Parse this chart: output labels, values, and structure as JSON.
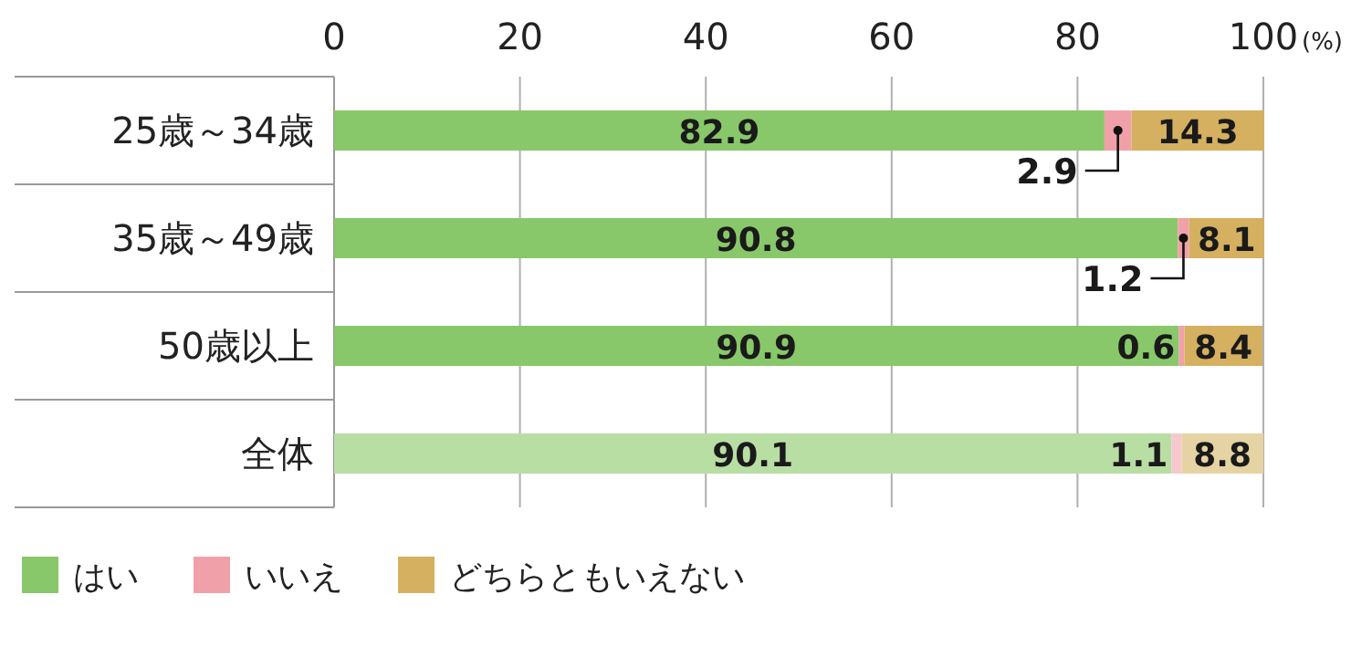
{
  "chart_data": {
    "type": "bar",
    "orientation": "horizontal",
    "stacked": true,
    "xlabel": "(%)",
    "categories": [
      "25歳～34歳",
      "35歳～49歳",
      "50歳以上",
      "全体"
    ],
    "series": [
      {
        "name": "はい",
        "color": "#88c86a",
        "colors": [
          "#88c86a",
          "#88c86a",
          "#88c86a",
          "#b8dea4"
        ],
        "values": [
          82.9,
          90.8,
          90.9,
          90.1
        ],
        "value_labels": [
          "82.9",
          "90.8",
          "90.9",
          "90.1"
        ]
      },
      {
        "name": "いいえ",
        "color": "#f0a0a8",
        "colors": [
          "#f0a0a8",
          "#f0a0a8",
          "#f0a0a8",
          "#f6c8cd"
        ],
        "values": [
          2.9,
          1.2,
          0.6,
          1.1
        ],
        "value_labels": [
          null,
          null,
          "0.6",
          "1.1"
        ]
      },
      {
        "name": "どちらともいえない",
        "color": "#d4b060",
        "colors": [
          "#d4b060",
          "#d4b060",
          "#d4b060",
          "#e6d3a3"
        ],
        "values": [
          14.3,
          8.1,
          8.4,
          8.8
        ],
        "value_labels": [
          "14.3",
          "8.1",
          "8.4",
          "8.8"
        ]
      }
    ],
    "annotations": [
      {
        "text": "2.9",
        "x": 84.35,
        "y": "25歳～34歳"
      },
      {
        "text": "1.2",
        "x": 91.4,
        "y": "35歳～49歳"
      }
    ],
    "xlim": [
      0,
      100
    ],
    "xticks": [
      0,
      20,
      40,
      60,
      80,
      100
    ],
    "grid": "x",
    "legend": "bottom left"
  }
}
